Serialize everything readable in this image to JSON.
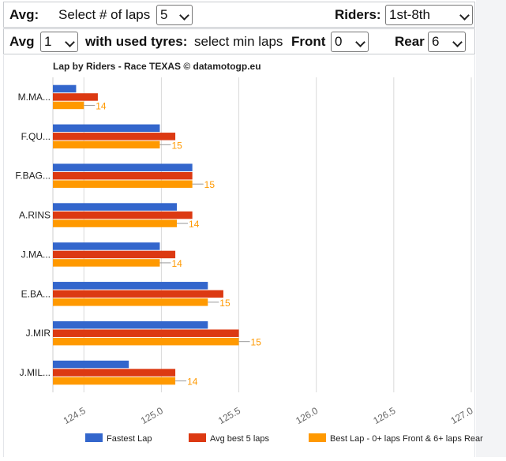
{
  "controls": {
    "avg_label": "Avg:",
    "laps_label": "Select # of laps",
    "laps_value": "5",
    "riders_label": "Riders:",
    "riders_value": "1st-8th",
    "avg2_label": "Avg",
    "avg2_value": "1",
    "tyres_label": "with used tyres:",
    "tyres_sub": "select min laps",
    "front_label": "Front",
    "front_value": "0",
    "rear_label": "Rear",
    "rear_value": "6"
  },
  "chart_data": {
    "type": "bar",
    "orientation": "horizontal",
    "title": "Lap by Riders - Race TEXAS © datamotogp.eu",
    "categories": [
      "M.MA...",
      "F.QU...",
      "F.BAG...",
      "A.RINS",
      "J.MA...",
      "E.BA...",
      "J.MIR",
      "J.MIL..."
    ],
    "series": [
      {
        "name": "Fastest Lap",
        "color": "#3366cc",
        "values": [
          124.45,
          124.99,
          125.2,
          125.1,
          124.99,
          125.3,
          125.3,
          124.79
        ]
      },
      {
        "name": "Avg best 5 laps",
        "color": "#dc3912",
        "values": [
          124.59,
          125.09,
          125.2,
          125.2,
          125.09,
          125.4,
          125.5,
          125.09
        ]
      },
      {
        "name": "Best Lap - 0+ laps Front & 6+ laps Rear",
        "color": "#ff9900",
        "values": [
          124.5,
          124.99,
          125.2,
          125.1,
          124.99,
          125.3,
          125.5,
          125.09
        ]
      }
    ],
    "data_labels": [
      "14",
      "15",
      "15",
      "14",
      "14",
      "15",
      "15",
      "14"
    ],
    "x_ticks": [
      "124.5",
      "125.0",
      "125.5",
      "126.0",
      "126.5",
      "127.0"
    ],
    "xlim": [
      124.3,
      127.0
    ],
    "grid": true,
    "legend_position": "bottom"
  }
}
